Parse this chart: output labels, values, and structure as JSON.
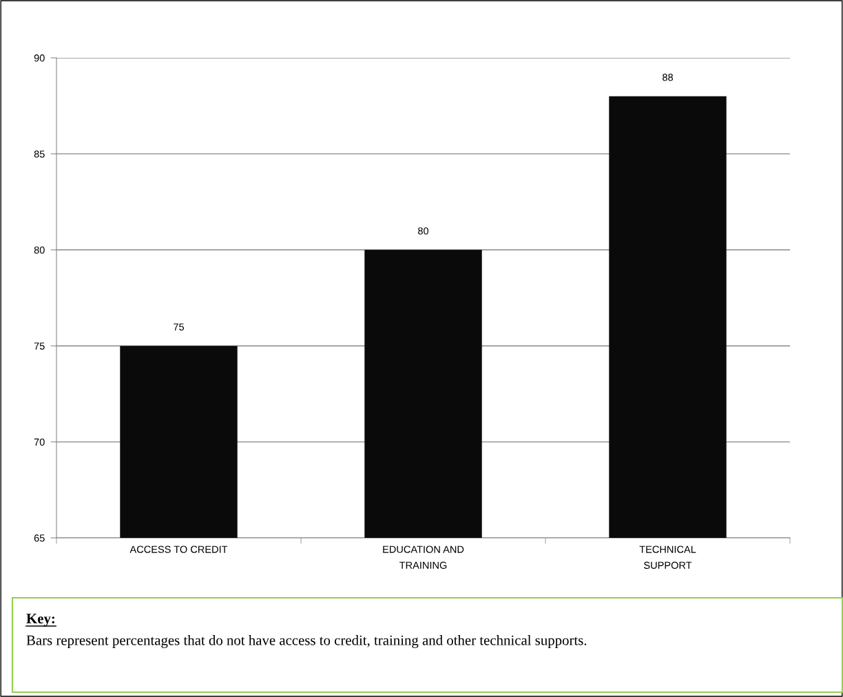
{
  "chart_data": {
    "type": "bar",
    "categories": [
      "ACCESS TO CREDIT",
      "EDUCATION AND TRAINING",
      "TECHNICAL SUPPORT"
    ],
    "values": [
      75,
      80,
      88
    ],
    "color": "#0a0a0a",
    "ylim": [
      65,
      90
    ],
    "yticks": [
      65,
      70,
      75,
      80,
      85,
      90
    ],
    "grid": "y",
    "data_labels": true,
    "annotations": [
      "Key:",
      "Bars represent percentages that do not have access to credit, training and other technical supports."
    ]
  }
}
